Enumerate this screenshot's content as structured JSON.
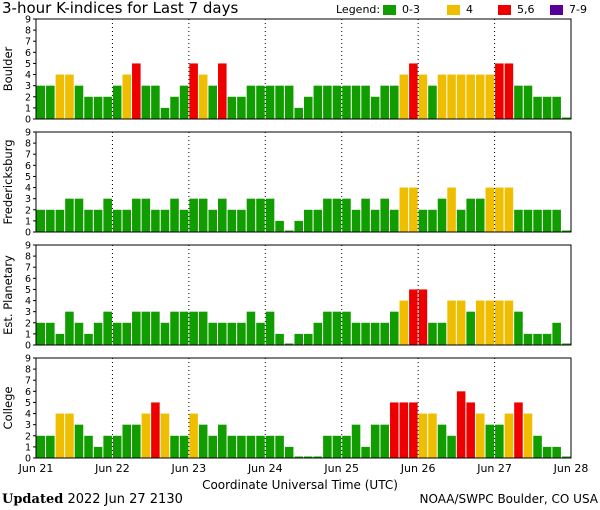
{
  "title": "3-hour K-indices for Last 7 days",
  "legend": {
    "label": "Legend:",
    "items": [
      {
        "label": "0-3",
        "color": "#119d00"
      },
      {
        "label": "4",
        "color": "#f0be00"
      },
      {
        "label": "5,6",
        "color": "#ef0000"
      },
      {
        "label": "7-9",
        "color": "#58009b"
      }
    ]
  },
  "footer": {
    "updated_label": "Updated",
    "updated_value": "2022 Jun 27 2130",
    "credit": "NOAA/SWPC Boulder, CO USA"
  },
  "chart_data": {
    "type": "bar",
    "xlabel": "Coordinate Universal Time (UTC)",
    "x_ticks": [
      "Jun 21",
      "Jun 22",
      "Jun 23",
      "Jun 24",
      "Jun 25",
      "Jun 26",
      "Jun 27",
      "Jun 28"
    ],
    "y_ticks": [
      "0",
      "1",
      "2",
      "3",
      "4",
      "5",
      "6",
      "7",
      "8",
      "9"
    ],
    "ylim": [
      0,
      9
    ],
    "colors": {
      "quiet": "#119d00",
      "k4": "#f0be00",
      "k56": "#ef0000",
      "k79": "#58009b"
    },
    "series": [
      {
        "name": "Boulder",
        "values": [
          3,
          3,
          4,
          4,
          3,
          2,
          2,
          2,
          3,
          4,
          5,
          3,
          3,
          1,
          2,
          3,
          5,
          4,
          3,
          5,
          2,
          2,
          3,
          3,
          3,
          3,
          3,
          1,
          2,
          3,
          3,
          3,
          3,
          3,
          3,
          2,
          3,
          3,
          4,
          5,
          4,
          3,
          4,
          4,
          4,
          4,
          4,
          4,
          5,
          5,
          3,
          3,
          2,
          2,
          2,
          0
        ]
      },
      {
        "name": "Fredericksburg",
        "values": [
          2,
          2,
          2,
          3,
          3,
          2,
          2,
          3,
          2,
          2,
          3,
          3,
          2,
          2,
          3,
          2,
          3,
          3,
          2,
          3,
          2,
          2,
          3,
          3,
          3,
          1,
          0,
          1,
          2,
          2,
          3,
          3,
          3,
          2,
          3,
          2,
          3,
          2,
          4,
          4,
          2,
          2,
          3,
          4,
          2,
          3,
          3,
          4,
          4,
          4,
          2,
          2,
          2,
          2,
          2,
          0
        ]
      },
      {
        "name": "Est. Planetary",
        "values": [
          2,
          2,
          1,
          3,
          2,
          1,
          2,
          3,
          2,
          2,
          3,
          3,
          3,
          2,
          3,
          3,
          3,
          3,
          2,
          2,
          2,
          2,
          3,
          2,
          3,
          1,
          0,
          1,
          1,
          2,
          3,
          3,
          3,
          2,
          2,
          2,
          2,
          3,
          4,
          5,
          5,
          2,
          2,
          4,
          4,
          3,
          4,
          4,
          4,
          4,
          3,
          1,
          1,
          1,
          2,
          0
        ]
      },
      {
        "name": "College",
        "values": [
          2,
          2,
          4,
          4,
          3,
          2,
          1,
          2,
          2,
          3,
          3,
          4,
          5,
          4,
          2,
          2,
          4,
          3,
          2,
          3,
          2,
          2,
          2,
          2,
          2,
          2,
          1,
          0,
          0,
          0,
          2,
          2,
          2,
          3,
          1,
          3,
          3,
          5,
          5,
          5,
          4,
          4,
          3,
          2,
          6,
          5,
          4,
          3,
          3,
          4,
          5,
          4,
          2,
          1,
          1,
          0
        ]
      }
    ]
  }
}
